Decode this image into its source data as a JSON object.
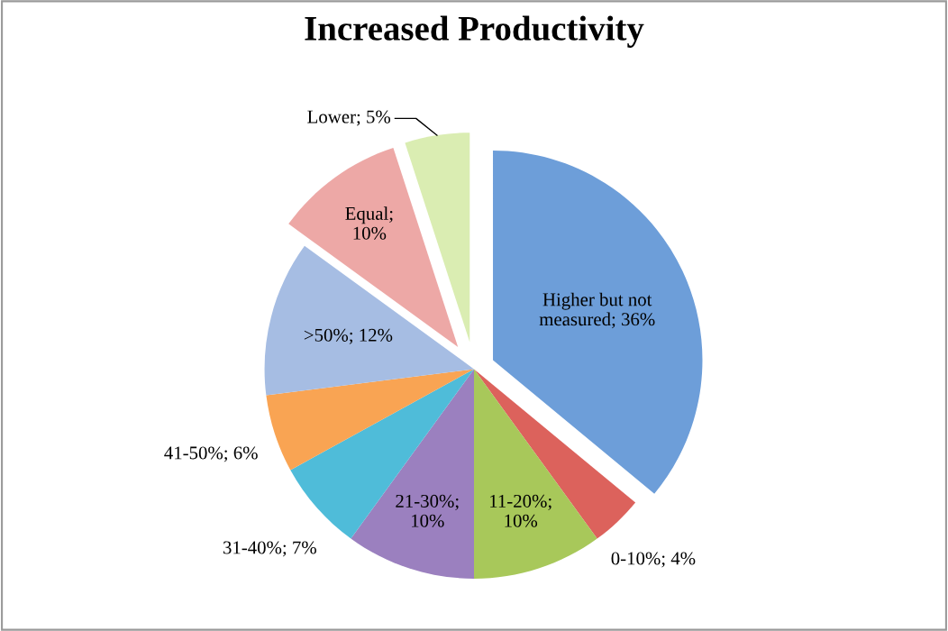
{
  "chart_data": {
    "type": "pie",
    "title": "Increased Productivity",
    "categories": [
      "Higher but not measured",
      "0-10%",
      "11-20%",
      "21-30%",
      "31-40%",
      "41-50%",
      ">50%",
      "Equal",
      "Lower"
    ],
    "values": [
      36,
      4,
      10,
      10,
      7,
      6,
      12,
      10,
      5
    ],
    "value_labels": [
      "; 36%",
      "; 4%",
      ";\n10%",
      ";\n10%",
      "; 7%",
      "; 6%",
      "; 12%",
      ";\n10%",
      "; 5%"
    ],
    "colors": [
      "#6d9ed9",
      "#dc625c",
      "#a8c85a",
      "#9b80bf",
      "#4fbcd9",
      "#f9a453",
      "#a6bde3",
      "#eda8a6",
      "#daedb2"
    ]
  }
}
